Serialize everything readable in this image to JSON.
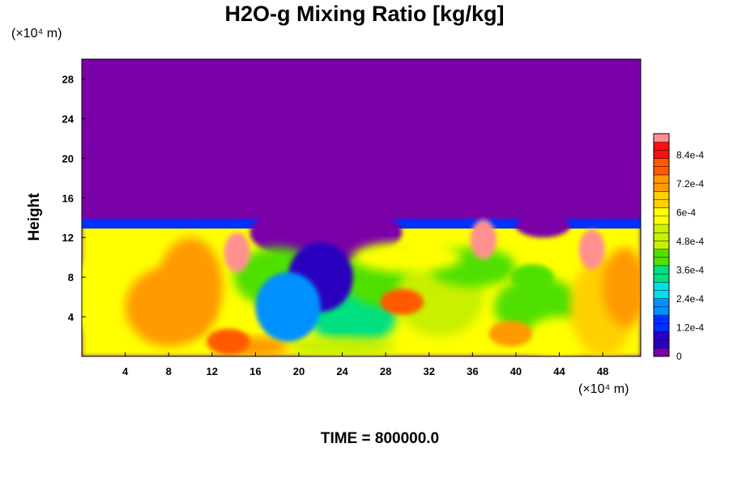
{
  "title": "H2O-g Mixing Ratio [kg/kg]",
  "y_unit": "(×10⁴ m)",
  "x_unit": "(×10⁴ m)",
  "ylabel": "Height",
  "time_label": "TIME = 800000.0",
  "colors": {
    "background_top": "#7a00a8",
    "colormap": [
      "#7a00a8",
      "#2a00c0",
      "#0030ff",
      "#0090ff",
      "#00e0e8",
      "#00e080",
      "#50e000",
      "#c8f000",
      "#ffff00",
      "#ffd000",
      "#ff9a00",
      "#ff5a00",
      "#ff1010",
      "#ff9090"
    ]
  },
  "chart_data": {
    "type": "heatmap",
    "title": "H2O-g Mixing Ratio [kg/kg]",
    "xlabel": "",
    "ylabel": "Height",
    "x_ticks": [
      "4",
      "8",
      "12",
      "16",
      "20",
      "24",
      "28",
      "32",
      "36",
      "40",
      "44",
      "48"
    ],
    "y_ticks": [
      "4",
      "8",
      "12",
      "16",
      "20",
      "24",
      "28"
    ],
    "colorbar_ticks": [
      "0",
      "1.2e-4",
      "2.4e-4",
      "3.6e-4",
      "4.8e-4",
      "6e-4",
      "7.2e-4",
      "8.4e-4"
    ],
    "xlim": [
      0,
      51.5
    ],
    "ylim": [
      0,
      30
    ],
    "zlim": [
      0,
      0.00093
    ],
    "moisture_top_height": 13.5,
    "features": [
      {
        "x": 29.5,
        "y": 5.5,
        "value": 0.00078
      },
      {
        "x": 39.5,
        "y": 2.3,
        "value": 0.00072
      },
      {
        "x": 13.5,
        "y": 1.5,
        "value": 0.00082
      },
      {
        "x": 14.3,
        "y": 10.5,
        "value": 0.00093
      },
      {
        "x": 37.0,
        "y": 11.8,
        "value": 0.00093
      },
      {
        "x": 47.0,
        "y": 10.8,
        "value": 0.00093
      },
      {
        "x": 22.0,
        "y": 8.0,
        "value": 0.0001
      },
      {
        "x": 19.0,
        "y": 5.0,
        "value": 0.0002
      },
      {
        "x": 41.5,
        "y": 8.0,
        "value": 0.0004
      }
    ]
  }
}
